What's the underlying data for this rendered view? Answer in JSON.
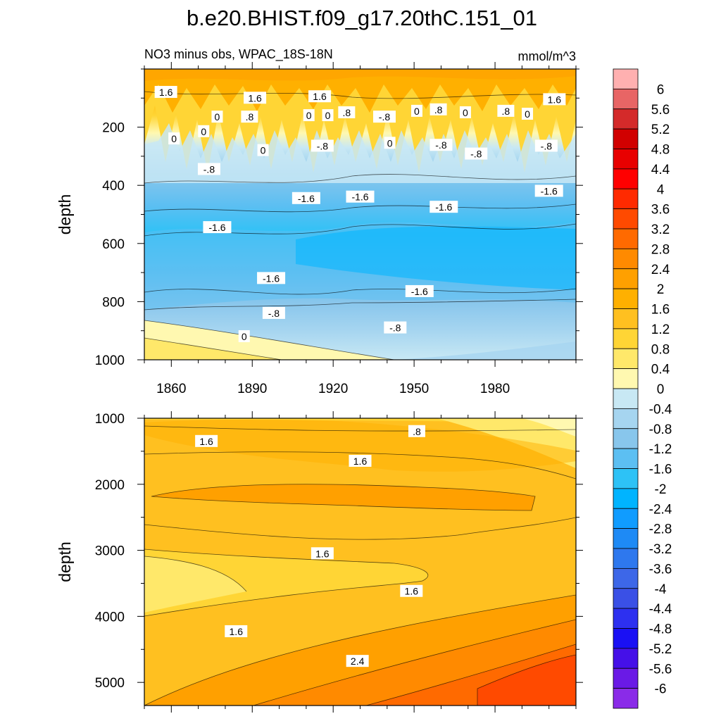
{
  "title": "b.e20.BHIST.f09_g17.20thC.151_01",
  "subtitle_left": "NO3 minus obs, WPAC_18S-18N",
  "subtitle_right": "mmol/m^3",
  "chart_data": [
    {
      "type": "heatmap",
      "panel": "upper",
      "xlabel": "",
      "ylabel": "depth",
      "xlim": [
        1850,
        2010
      ],
      "ylim": [
        1000,
        0
      ],
      "xticks": [
        1860,
        1890,
        1920,
        1950,
        1980
      ],
      "yticks": [
        200,
        400,
        600,
        800,
        1000
      ],
      "contour_labels": [
        {
          "text": "1.6",
          "x": 1858,
          "y": 80
        },
        {
          "text": "1.6",
          "x": 1891,
          "y": 100
        },
        {
          "text": "1.6",
          "x": 1915,
          "y": 95
        },
        {
          "text": "1.6",
          "x": 2002,
          "y": 105
        },
        {
          "text": ".8",
          "x": 1925,
          "y": 150
        },
        {
          "text": ".8",
          "x": 1959,
          "y": 140
        },
        {
          "text": ".8",
          "x": 1984,
          "y": 145
        },
        {
          "text": "0",
          "x": 1877,
          "y": 165
        },
        {
          "text": ".8",
          "x": 1889,
          "y": 165
        },
        {
          "text": "0",
          "x": 1911,
          "y": 160
        },
        {
          "text": "0",
          "x": 1918,
          "y": 160
        },
        {
          "text": "-.8",
          "x": 1939,
          "y": 165
        },
        {
          "text": "0",
          "x": 1951,
          "y": 145
        },
        {
          "text": "0",
          "x": 1969,
          "y": 150
        },
        {
          "text": "0",
          "x": 1992,
          "y": 155
        },
        {
          "text": "0",
          "x": 1861,
          "y": 240
        },
        {
          "text": "0",
          "x": 1872,
          "y": 215
        },
        {
          "text": "0",
          "x": 1894,
          "y": 280
        },
        {
          "text": "-.8",
          "x": 1916,
          "y": 265
        },
        {
          "text": "0",
          "x": 1941,
          "y": 255
        },
        {
          "text": "-.8",
          "x": 1960,
          "y": 262
        },
        {
          "text": "-.8",
          "x": 1973,
          "y": 292
        },
        {
          "text": "-.8",
          "x": 1999,
          "y": 265
        },
        {
          "text": "-.8",
          "x": 1874,
          "y": 345
        },
        {
          "text": "-1.6",
          "x": 1910,
          "y": 445
        },
        {
          "text": "-1.6",
          "x": 1930,
          "y": 440
        },
        {
          "text": "-1.6",
          "x": 1961,
          "y": 475
        },
        {
          "text": "-1.6",
          "x": 2000,
          "y": 420
        },
        {
          "text": "-1.6",
          "x": 1877,
          "y": 545
        },
        {
          "text": "-1.6",
          "x": 1897,
          "y": 720
        },
        {
          "text": "-1.6",
          "x": 1952,
          "y": 765
        },
        {
          "text": "-.8",
          "x": 1898,
          "y": 840
        },
        {
          "text": "-.8",
          "x": 1943,
          "y": 890
        },
        {
          "text": "0",
          "x": 1887,
          "y": 920
        }
      ]
    },
    {
      "type": "heatmap",
      "panel": "lower",
      "xlabel": "",
      "ylabel": "depth",
      "xlim": [
        1850,
        2010
      ],
      "ylim": [
        5350,
        1000
      ],
      "xticks": [
        1860,
        1890,
        1920,
        1950,
        1980
      ],
      "yticks": [
        1000,
        2000,
        3000,
        4000,
        5000
      ],
      "contour_labels": [
        {
          "text": "1.6",
          "x": 1873,
          "y": 1350
        },
        {
          "text": ".8",
          "x": 1951,
          "y": 1200
        },
        {
          "text": "1.6",
          "x": 1930,
          "y": 1650
        },
        {
          "text": "1.6",
          "x": 1916,
          "y": 3050
        },
        {
          "text": "1.6",
          "x": 1949,
          "y": 3620
        },
        {
          "text": "1.6",
          "x": 1884,
          "y": 4230
        },
        {
          "text": "2.4",
          "x": 1929,
          "y": 4680
        }
      ]
    }
  ],
  "colorbar": {
    "labels": [
      "6",
      "5.6",
      "5.2",
      "4.8",
      "4.4",
      "4",
      "3.6",
      "3.2",
      "2.8",
      "2.4",
      "2",
      "1.6",
      "1.2",
      "0.8",
      "0.4",
      "0",
      "-0.4",
      "-0.8",
      "-1.2",
      "-1.6",
      "-2",
      "-2.4",
      "-2.8",
      "-3.2",
      "-3.6",
      "-4",
      "-4.4",
      "-4.8",
      "-5.2",
      "-5.6",
      "-6"
    ],
    "colors": [
      "#FFB0B0",
      "#E86565",
      "#D42A2A",
      "#D10000",
      "#E80000",
      "#FF0000",
      "#FF2A00",
      "#FF4A00",
      "#FF6A00",
      "#FF8A00",
      "#FFA000",
      "#FFB000",
      "#FFC020",
      "#FFD535",
      "#FFE86A",
      "#FFF8B0",
      "#C8E8F4",
      "#A6D5F0",
      "#88C6EC",
      "#5CBFF2",
      "#2DC2F6",
      "#00B4FF",
      "#109CFF",
      "#1E8AF5",
      "#2E78EE",
      "#3D67E8",
      "#3A50E6",
      "#2D30F0",
      "#1A10F4",
      "#4510E8",
      "#6A1AE6",
      "#8A2BE8"
    ]
  }
}
